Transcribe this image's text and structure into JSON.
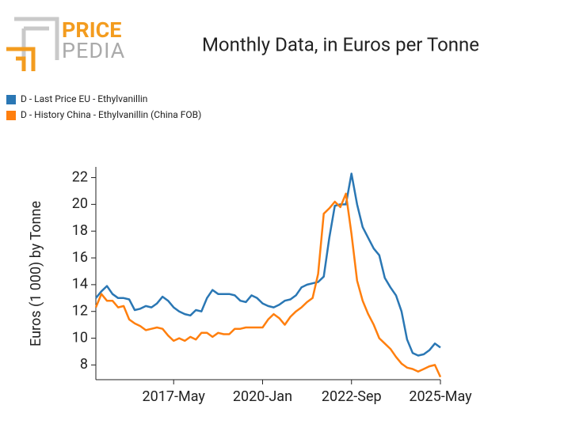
{
  "logo": {
    "top": "PRICE",
    "bottom": "PEDIA"
  },
  "chart_data": {
    "type": "line",
    "title": "Monthly Data, in Euros per Tonne",
    "y_label": "Euros (1 000) by Tonne",
    "x": [
      "2015-01",
      "2015-03",
      "2015-05",
      "2015-07",
      "2015-09",
      "2015-11",
      "2016-01",
      "2016-03",
      "2016-05",
      "2016-07",
      "2016-09",
      "2016-11",
      "2017-01",
      "2017-03",
      "2017-05",
      "2017-07",
      "2017-09",
      "2017-11",
      "2018-01",
      "2018-03",
      "2018-05",
      "2018-07",
      "2018-09",
      "2018-11",
      "2019-01",
      "2019-03",
      "2019-05",
      "2019-07",
      "2019-09",
      "2019-11",
      "2020-01",
      "2020-03",
      "2020-05",
      "2020-07",
      "2020-09",
      "2020-11",
      "2021-01",
      "2021-03",
      "2021-05",
      "2021-07",
      "2021-09",
      "2021-11",
      "2022-01",
      "2022-03",
      "2022-05",
      "2022-07",
      "2022-09",
      "2022-11",
      "2023-01",
      "2023-03",
      "2023-05",
      "2023-07",
      "2023-09",
      "2023-11",
      "2024-01",
      "2024-03",
      "2024-05",
      "2024-07",
      "2024-09",
      "2024-11",
      "2025-01",
      "2025-03",
      "2025-05"
    ],
    "series": [
      {
        "name": "D - Last Price EU - Ethylvanillin",
        "color": "#2a77b4",
        "values": [
          13.0,
          13.5,
          13.9,
          13.3,
          13.0,
          13.0,
          12.9,
          12.1,
          12.2,
          12.4,
          12.3,
          12.6,
          13.1,
          12.8,
          12.3,
          12.0,
          11.8,
          11.7,
          12.1,
          12.0,
          13.0,
          13.6,
          13.3,
          13.3,
          13.3,
          13.2,
          12.8,
          12.7,
          13.2,
          13.0,
          12.6,
          12.4,
          12.3,
          12.5,
          12.8,
          12.9,
          13.2,
          13.8,
          14.0,
          14.1,
          14.2,
          14.6,
          17.5,
          19.9,
          20.0,
          20.0,
          22.3,
          20.0,
          18.3,
          17.5,
          16.7,
          16.2,
          14.5,
          13.8,
          13.2,
          12.0,
          9.9,
          8.9,
          8.7,
          8.8,
          9.1,
          9.6,
          9.3
        ]
      },
      {
        "name": "D - History China - Ethylvanillin (China FOB)",
        "color": "#ff7f0e",
        "values": [
          12.3,
          13.3,
          12.8,
          12.8,
          12.3,
          12.4,
          11.4,
          11.1,
          10.9,
          10.6,
          10.7,
          10.8,
          10.7,
          10.2,
          9.8,
          10.0,
          9.8,
          10.1,
          9.9,
          10.4,
          10.4,
          10.1,
          10.4,
          10.3,
          10.3,
          10.7,
          10.7,
          10.8,
          10.8,
          10.8,
          10.8,
          11.4,
          11.8,
          11.5,
          11.0,
          11.6,
          12.0,
          12.3,
          12.7,
          13.0,
          14.8,
          19.3,
          19.7,
          20.2,
          19.8,
          20.8,
          17.8,
          14.3,
          12.8,
          11.8,
          11.0,
          10.0,
          9.6,
          9.2,
          8.6,
          8.1,
          7.8,
          7.7,
          7.5,
          7.7,
          7.9,
          8.0,
          7.1
        ]
      }
    ],
    "xlim": [
      "2015-01",
      "2025-05"
    ],
    "xticks": [
      {
        "value": "2017-05",
        "label": "2017-May"
      },
      {
        "value": "2020-01",
        "label": "2020-Jan"
      },
      {
        "value": "2022-09",
        "label": "2022-Sep"
      },
      {
        "value": "2025-05",
        "label": "2025-May"
      }
    ],
    "ylim": [
      6.9,
      22.8
    ],
    "yticks": [
      8,
      10,
      12,
      14,
      16,
      18,
      20,
      22
    ],
    "legend": "top-left",
    "grid": false
  }
}
